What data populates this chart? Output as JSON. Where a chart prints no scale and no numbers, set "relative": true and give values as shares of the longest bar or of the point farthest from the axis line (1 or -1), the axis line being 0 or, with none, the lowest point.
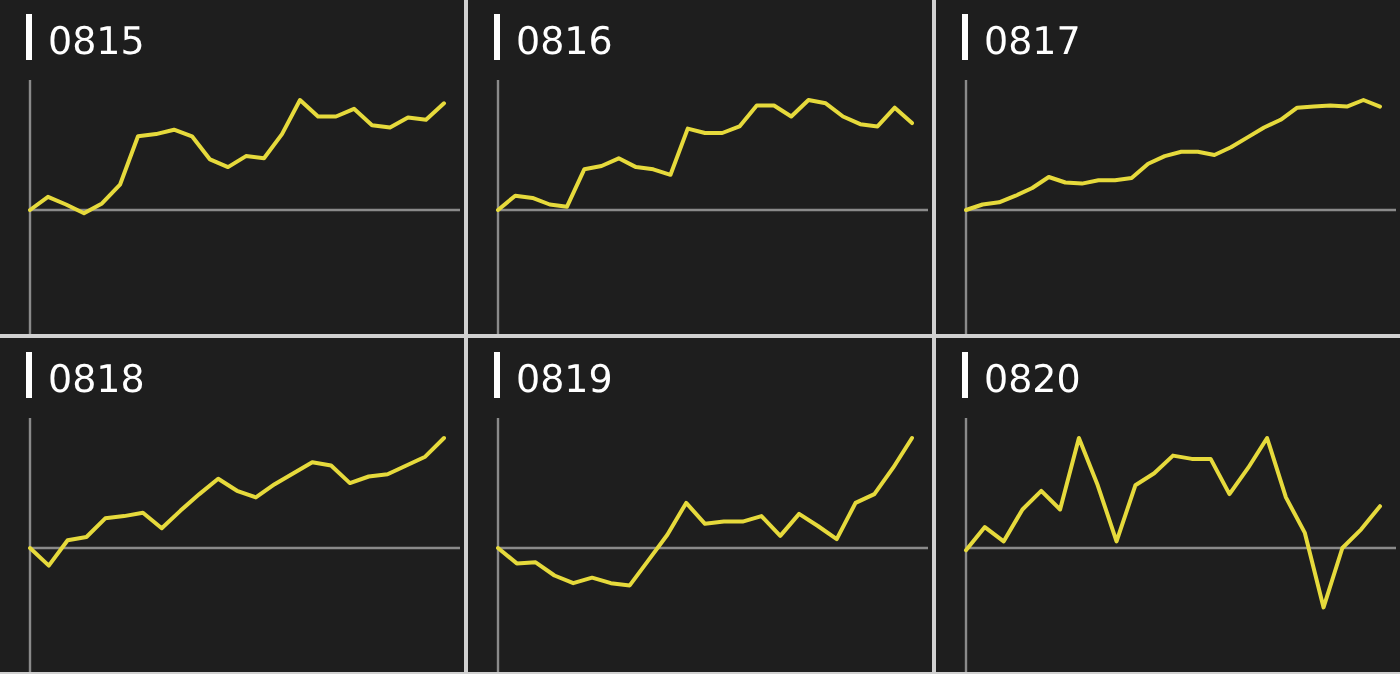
{
  "chart_data": [
    {
      "type": "line",
      "title": "0815",
      "relative": true,
      "color": "#e6da3c",
      "categories": [
        null,
        null,
        null,
        null,
        null,
        null,
        null,
        null,
        null,
        null,
        null,
        null,
        null,
        null,
        null,
        null,
        null,
        null,
        null,
        null,
        null,
        null,
        null,
        null
      ],
      "values": [
        0,
        0.12,
        0.05,
        -0.03,
        0.06,
        0.23,
        0.67,
        0.69,
        0.73,
        0.67,
        0.46,
        0.39,
        0.49,
        0.47,
        0.69,
        1,
        0.85,
        0.85,
        0.92,
        0.77,
        0.75,
        0.84,
        0.82,
        0.97
      ]
    },
    {
      "type": "line",
      "title": "0816",
      "relative": true,
      "color": "#e6da3c",
      "categories": [
        null,
        null,
        null,
        null,
        null,
        null,
        null,
        null,
        null,
        null,
        null,
        null,
        null,
        null,
        null,
        null,
        null,
        null,
        null,
        null,
        null,
        null,
        null,
        null,
        null
      ],
      "values": [
        0,
        0.13,
        0.11,
        0.05,
        0.03,
        0.37,
        0.4,
        0.47,
        0.39,
        0.37,
        0.32,
        0.74,
        0.7,
        0.7,
        0.76,
        0.95,
        0.95,
        0.85,
        1,
        0.97,
        0.85,
        0.78,
        0.76,
        0.93,
        0.79
      ]
    },
    {
      "type": "line",
      "title": "0817",
      "relative": true,
      "color": "#e6da3c",
      "categories": [
        null,
        null,
        null,
        null,
        null,
        null,
        null,
        null,
        null,
        null,
        null,
        null,
        null,
        null,
        null,
        null,
        null,
        null,
        null,
        null,
        null,
        null,
        null,
        null,
        null,
        null
      ],
      "values": [
        0,
        0.05,
        0.07,
        0.13,
        0.2,
        0.3,
        0.25,
        0.24,
        0.27,
        0.27,
        0.29,
        0.42,
        0.49,
        0.53,
        0.53,
        0.5,
        0.57,
        0.66,
        0.75,
        0.82,
        0.93,
        0.94,
        0.95,
        0.94,
        1,
        0.94
      ]
    },
    {
      "type": "line",
      "title": "0818",
      "relative": true,
      "color": "#e6da3c",
      "categories": [
        null,
        null,
        null,
        null,
        null,
        null,
        null,
        null,
        null,
        null,
        null,
        null,
        null,
        null,
        null,
        null,
        null,
        null,
        null,
        null,
        null,
        null,
        null
      ],
      "values": [
        0,
        -0.16,
        0.07,
        0.1,
        0.27,
        0.29,
        0.32,
        0.18,
        0.34,
        0.49,
        0.63,
        0.52,
        0.46,
        0.58,
        0.68,
        0.78,
        0.75,
        0.59,
        0.65,
        0.67,
        0.75,
        0.83,
        1
      ]
    },
    {
      "type": "line",
      "title": "0819",
      "relative": true,
      "color": "#e6da3c",
      "categories": [
        null,
        null,
        null,
        null,
        null,
        null,
        null,
        null,
        null,
        null,
        null,
        null,
        null,
        null,
        null,
        null,
        null,
        null,
        null,
        null,
        null,
        null,
        null
      ],
      "values": [
        0,
        -0.14,
        -0.13,
        -0.25,
        -0.32,
        -0.27,
        -0.32,
        -0.34,
        -0.11,
        0.12,
        0.41,
        0.22,
        0.24,
        0.24,
        0.29,
        0.11,
        0.31,
        0.2,
        0.08,
        0.41,
        0.49,
        0.73,
        1
      ]
    },
    {
      "type": "line",
      "title": "0820",
      "relative": true,
      "color": "#e6da3c",
      "categories": [
        null,
        null,
        null,
        null,
        null,
        null,
        null,
        null,
        null,
        null,
        null,
        null,
        null,
        null,
        null,
        null,
        null,
        null,
        null,
        null,
        null,
        null,
        null
      ],
      "values": [
        -0.02,
        0.19,
        0.06,
        0.35,
        0.52,
        0.35,
        1,
        0.57,
        0.06,
        0.57,
        0.68,
        0.84,
        0.81,
        0.81,
        0.49,
        0.73,
        1,
        0.46,
        0.14,
        -0.54,
        0,
        0.17,
        0.38
      ]
    }
  ]
}
